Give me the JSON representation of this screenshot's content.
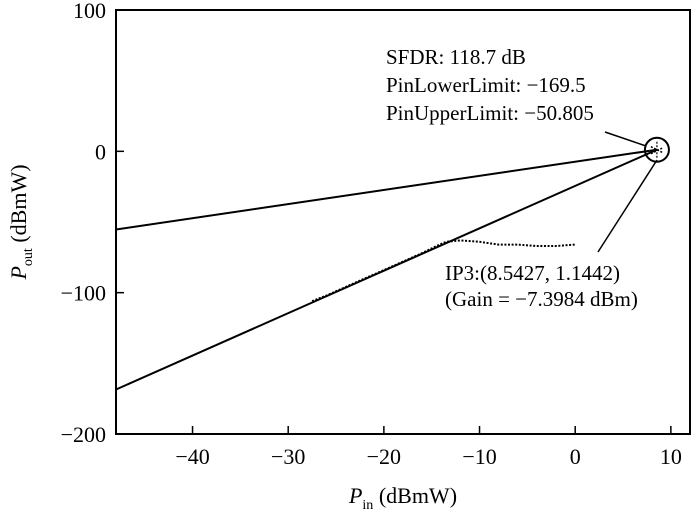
{
  "chart_data": {
    "type": "line",
    "title": "",
    "xlabel": {
      "main": "P",
      "sub": "in",
      "unit": " (dBmW)"
    },
    "ylabel": {
      "main": "P",
      "sub": "out",
      "unit": " (dBmW)"
    },
    "xlim": [
      -48,
      12
    ],
    "ylim": [
      -200,
      100
    ],
    "xticks": [
      -40,
      -30,
      -20,
      -10,
      0,
      10
    ],
    "yticks": [
      -200,
      -100,
      0,
      100
    ],
    "grid": false,
    "series": [
      {
        "name": "",
        "style": "solid",
        "x": [
          -48,
          8.5427
        ],
        "y": [
          -55.3,
          1.1442
        ]
      },
      {
        "name": "",
        "style": "solid",
        "x": [
          -48,
          8.5427
        ],
        "y": [
          -168.5,
          1.1442
        ]
      },
      {
        "name": "",
        "style": "dotted",
        "x": [
          -27.5,
          -26,
          -24,
          -22,
          -20,
          -18,
          -16,
          -14.5,
          -13.5,
          -12,
          -10,
          -8,
          -6,
          -4,
          -2,
          0
        ],
        "y": [
          -106,
          -102,
          -96,
          -90,
          -84,
          -78,
          -72,
          -67,
          -64,
          -63,
          -64,
          -66,
          -66,
          -67,
          -67,
          -66
        ]
      }
    ],
    "annotations": {
      "sfdr": "SFDR: 118.7 dB",
      "pin_lower": "PinLowerLimit: −169.5",
      "pin_upper": "PinUpperLimit: −50.805",
      "ip3_point": "IP3:(8.5427, 1.1442)",
      "ip3_gain": "(Gain = −7.3984 dBm)"
    },
    "ip3": {
      "x": 8.5427,
      "y": 1.1442
    }
  }
}
